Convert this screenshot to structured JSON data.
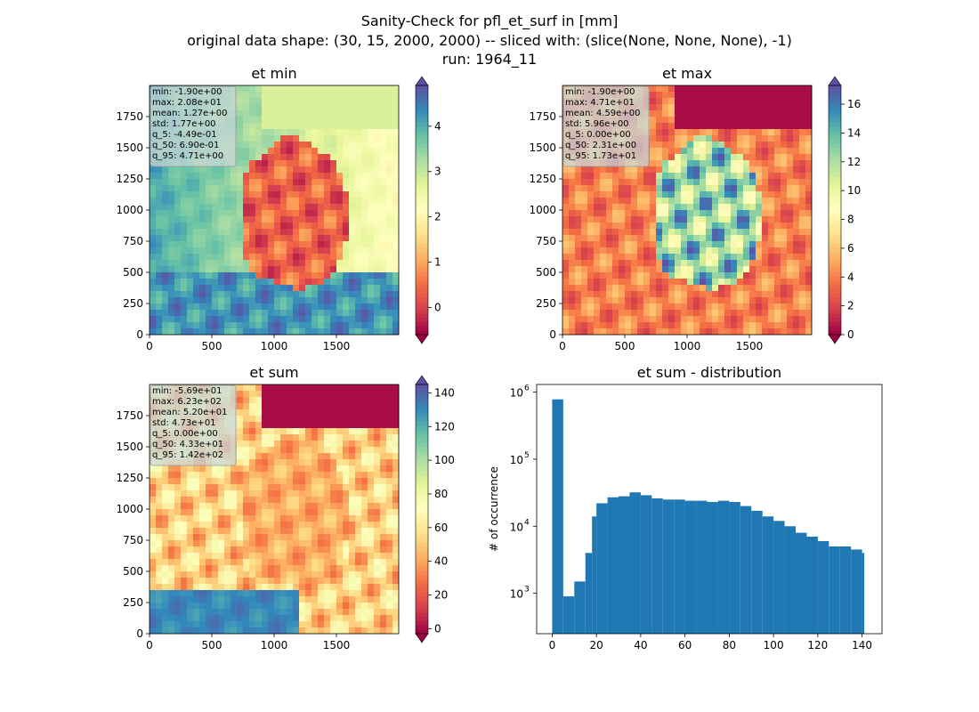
{
  "figure": {
    "title_lines": [
      "Sanity-Check for pfl_et_surf in [mm]",
      "original data shape: (30, 15, 2000, 2000) -- sliced with: (slice(None, None, None), -1)",
      "run: 1964_11"
    ]
  },
  "colors": {
    "histogram_bar": "#1f77b4",
    "stats_box": "#c8d7d7",
    "colormap": [
      "#9e0142",
      "#d53e4f",
      "#f46d43",
      "#fdae61",
      "#fee08b",
      "#ffffbf",
      "#e6f598",
      "#abdda4",
      "#66c2a5",
      "#3288bd",
      "#5e4fa2"
    ]
  },
  "chart_data": [
    {
      "type": "heatmap",
      "title": "et min",
      "xlim": [
        0,
        2000
      ],
      "ylim": [
        0,
        2000
      ],
      "xticks": [
        0,
        500,
        1000,
        1500
      ],
      "yticks": [
        0,
        250,
        500,
        750,
        1000,
        1250,
        1500,
        1750
      ],
      "colorbar": {
        "range": [
          -0.6,
          4.9
        ],
        "ticks": [
          0,
          1,
          2,
          3,
          4
        ],
        "extend": "both"
      },
      "stats": [
        "min: -1.90e+00",
        "max: 2.08e+01",
        "mean: 1.27e+00",
        "std: 1.77e+00",
        "q_5: -4.49e-01",
        "q_50: 6.90e-01",
        "q_95: 4.71e+00"
      ]
    },
    {
      "type": "heatmap",
      "title": "et max",
      "xlim": [
        0,
        2000
      ],
      "ylim": [
        0,
        2000
      ],
      "xticks": [
        0,
        500,
        1000,
        1500
      ],
      "yticks": [
        0,
        250,
        500,
        750,
        1000,
        1250,
        1500,
        1750
      ],
      "colorbar": {
        "range": [
          0,
          17.3
        ],
        "ticks": [
          0,
          2,
          4,
          6,
          8,
          10,
          12,
          14,
          16
        ],
        "extend": "both"
      },
      "stats": [
        "min: -1.90e+00",
        "max: 4.71e+01",
        "mean: 4.59e+00",
        "std: 5.96e+00",
        "q_5: 0.00e+00",
        "q_50: 2.31e+00",
        "q_95: 1.73e+01"
      ]
    },
    {
      "type": "heatmap",
      "title": "et sum",
      "xlim": [
        0,
        2000
      ],
      "ylim": [
        0,
        2000
      ],
      "xticks": [
        0,
        500,
        1000,
        1500
      ],
      "yticks": [
        0,
        250,
        500,
        750,
        1000,
        1250,
        1500,
        1750
      ],
      "colorbar": {
        "range": [
          -3,
          145
        ],
        "ticks": [
          0,
          20,
          40,
          60,
          80,
          100,
          120,
          140
        ],
        "extend": "both"
      },
      "stats": [
        "min: -5.69e+01",
        "max: 6.23e+02",
        "mean: 5.20e+01",
        "std: 4.73e+01",
        "q_5: 0.00e+00",
        "q_50: 4.33e+01",
        "q_95: 1.42e+02"
      ]
    },
    {
      "type": "bar",
      "title": "et sum - distribution",
      "ylabel": "# of occurrence",
      "yscale": "log",
      "xlim": [
        -7,
        149
      ],
      "ylim": [
        250,
        1300000
      ],
      "xticks": [
        0,
        20,
        40,
        60,
        80,
        100,
        120,
        140
      ],
      "yticks": [
        1000,
        10000,
        100000,
        1000000
      ],
      "ytick_labels": [
        {
          "base": "10",
          "exp": "3"
        },
        {
          "base": "10",
          "exp": "4"
        },
        {
          "base": "10",
          "exp": "5"
        },
        {
          "base": "10",
          "exp": "6"
        }
      ],
      "bin_width": 1,
      "bins_x": [
        0,
        5,
        10,
        15,
        18,
        20,
        25,
        30,
        35,
        40,
        45,
        50,
        55,
        60,
        65,
        70,
        75,
        80,
        85,
        90,
        95,
        100,
        105,
        110,
        115,
        120,
        125,
        130,
        135,
        140
      ],
      "bins_y": [
        780000,
        900,
        1500,
        4000,
        14000,
        22000,
        27000,
        28000,
        32000,
        29000,
        26000,
        25000,
        25000,
        24000,
        24000,
        23000,
        24000,
        23000,
        20000,
        17000,
        14000,
        12000,
        10000,
        8000,
        7000,
        6000,
        5000,
        5000,
        4500,
        4000
      ]
    }
  ]
}
